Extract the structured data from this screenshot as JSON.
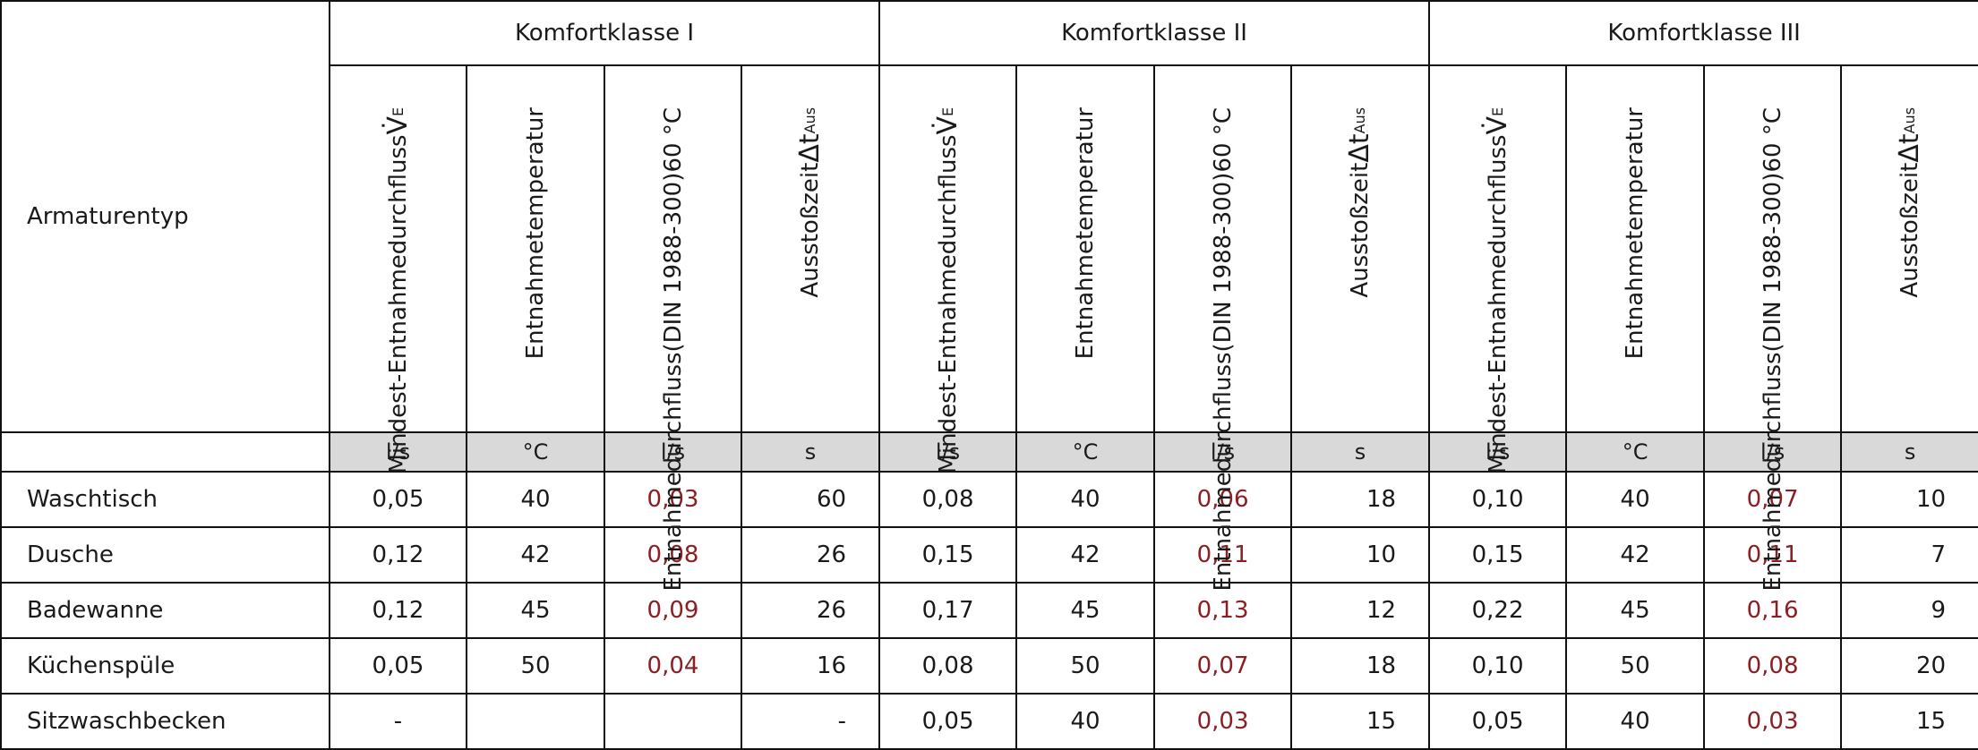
{
  "table": {
    "row_header": "Armaturentyp",
    "groups": [
      "Komfortklasse I",
      "Komfortklasse II",
      "Komfortklasse III"
    ],
    "col_headers": {
      "min_flow": [
        "Mindest-",
        "Entnahmedurchfluss"
      ],
      "min_flow_symbol": "V̇",
      "min_flow_sub": "E",
      "temp": "Entnahmetemperatur",
      "din_flow": [
        "Entnahmedurchfluss",
        "(DIN 1988-300)",
        "60 °C"
      ],
      "time": "Ausstoßzeit",
      "time_symbol": "Δt",
      "time_sub": "Aus"
    },
    "units": [
      "l/s",
      "°C",
      "l/s",
      "s",
      "l/s",
      "°C",
      "l/s",
      "s",
      "l/s",
      "°C",
      "l/s",
      "s"
    ],
    "rows": [
      {
        "name": "Waschtisch",
        "cells": [
          "0,05",
          "40",
          "0,03",
          "60",
          "0,08",
          "40",
          "0,06",
          "18",
          "0,10",
          "40",
          "0,07",
          "10"
        ]
      },
      {
        "name": "Dusche",
        "cells": [
          "0,12",
          "42",
          "0,08",
          "26",
          "0,15",
          "42",
          "0,11",
          "10",
          "0,15",
          "42",
          "0,11",
          "7"
        ]
      },
      {
        "name": "Badewanne",
        "cells": [
          "0,12",
          "45",
          "0,09",
          "26",
          "0,17",
          "45",
          "0,13",
          "12",
          "0,22",
          "45",
          "0,16",
          "9"
        ]
      },
      {
        "name": "Küchenspüle",
        "cells": [
          "0,05",
          "50",
          "0,04",
          "16",
          "0,08",
          "50",
          "0,07",
          "18",
          "0,10",
          "50",
          "0,08",
          "20"
        ]
      },
      {
        "name": "Sitzwaschbecken",
        "cells": [
          "-",
          "",
          "",
          "-",
          "0,05",
          "40",
          "0,03",
          "15",
          "0,05",
          "40",
          "0,03",
          "15"
        ]
      }
    ],
    "highlight_color": "#8b1f24"
  }
}
